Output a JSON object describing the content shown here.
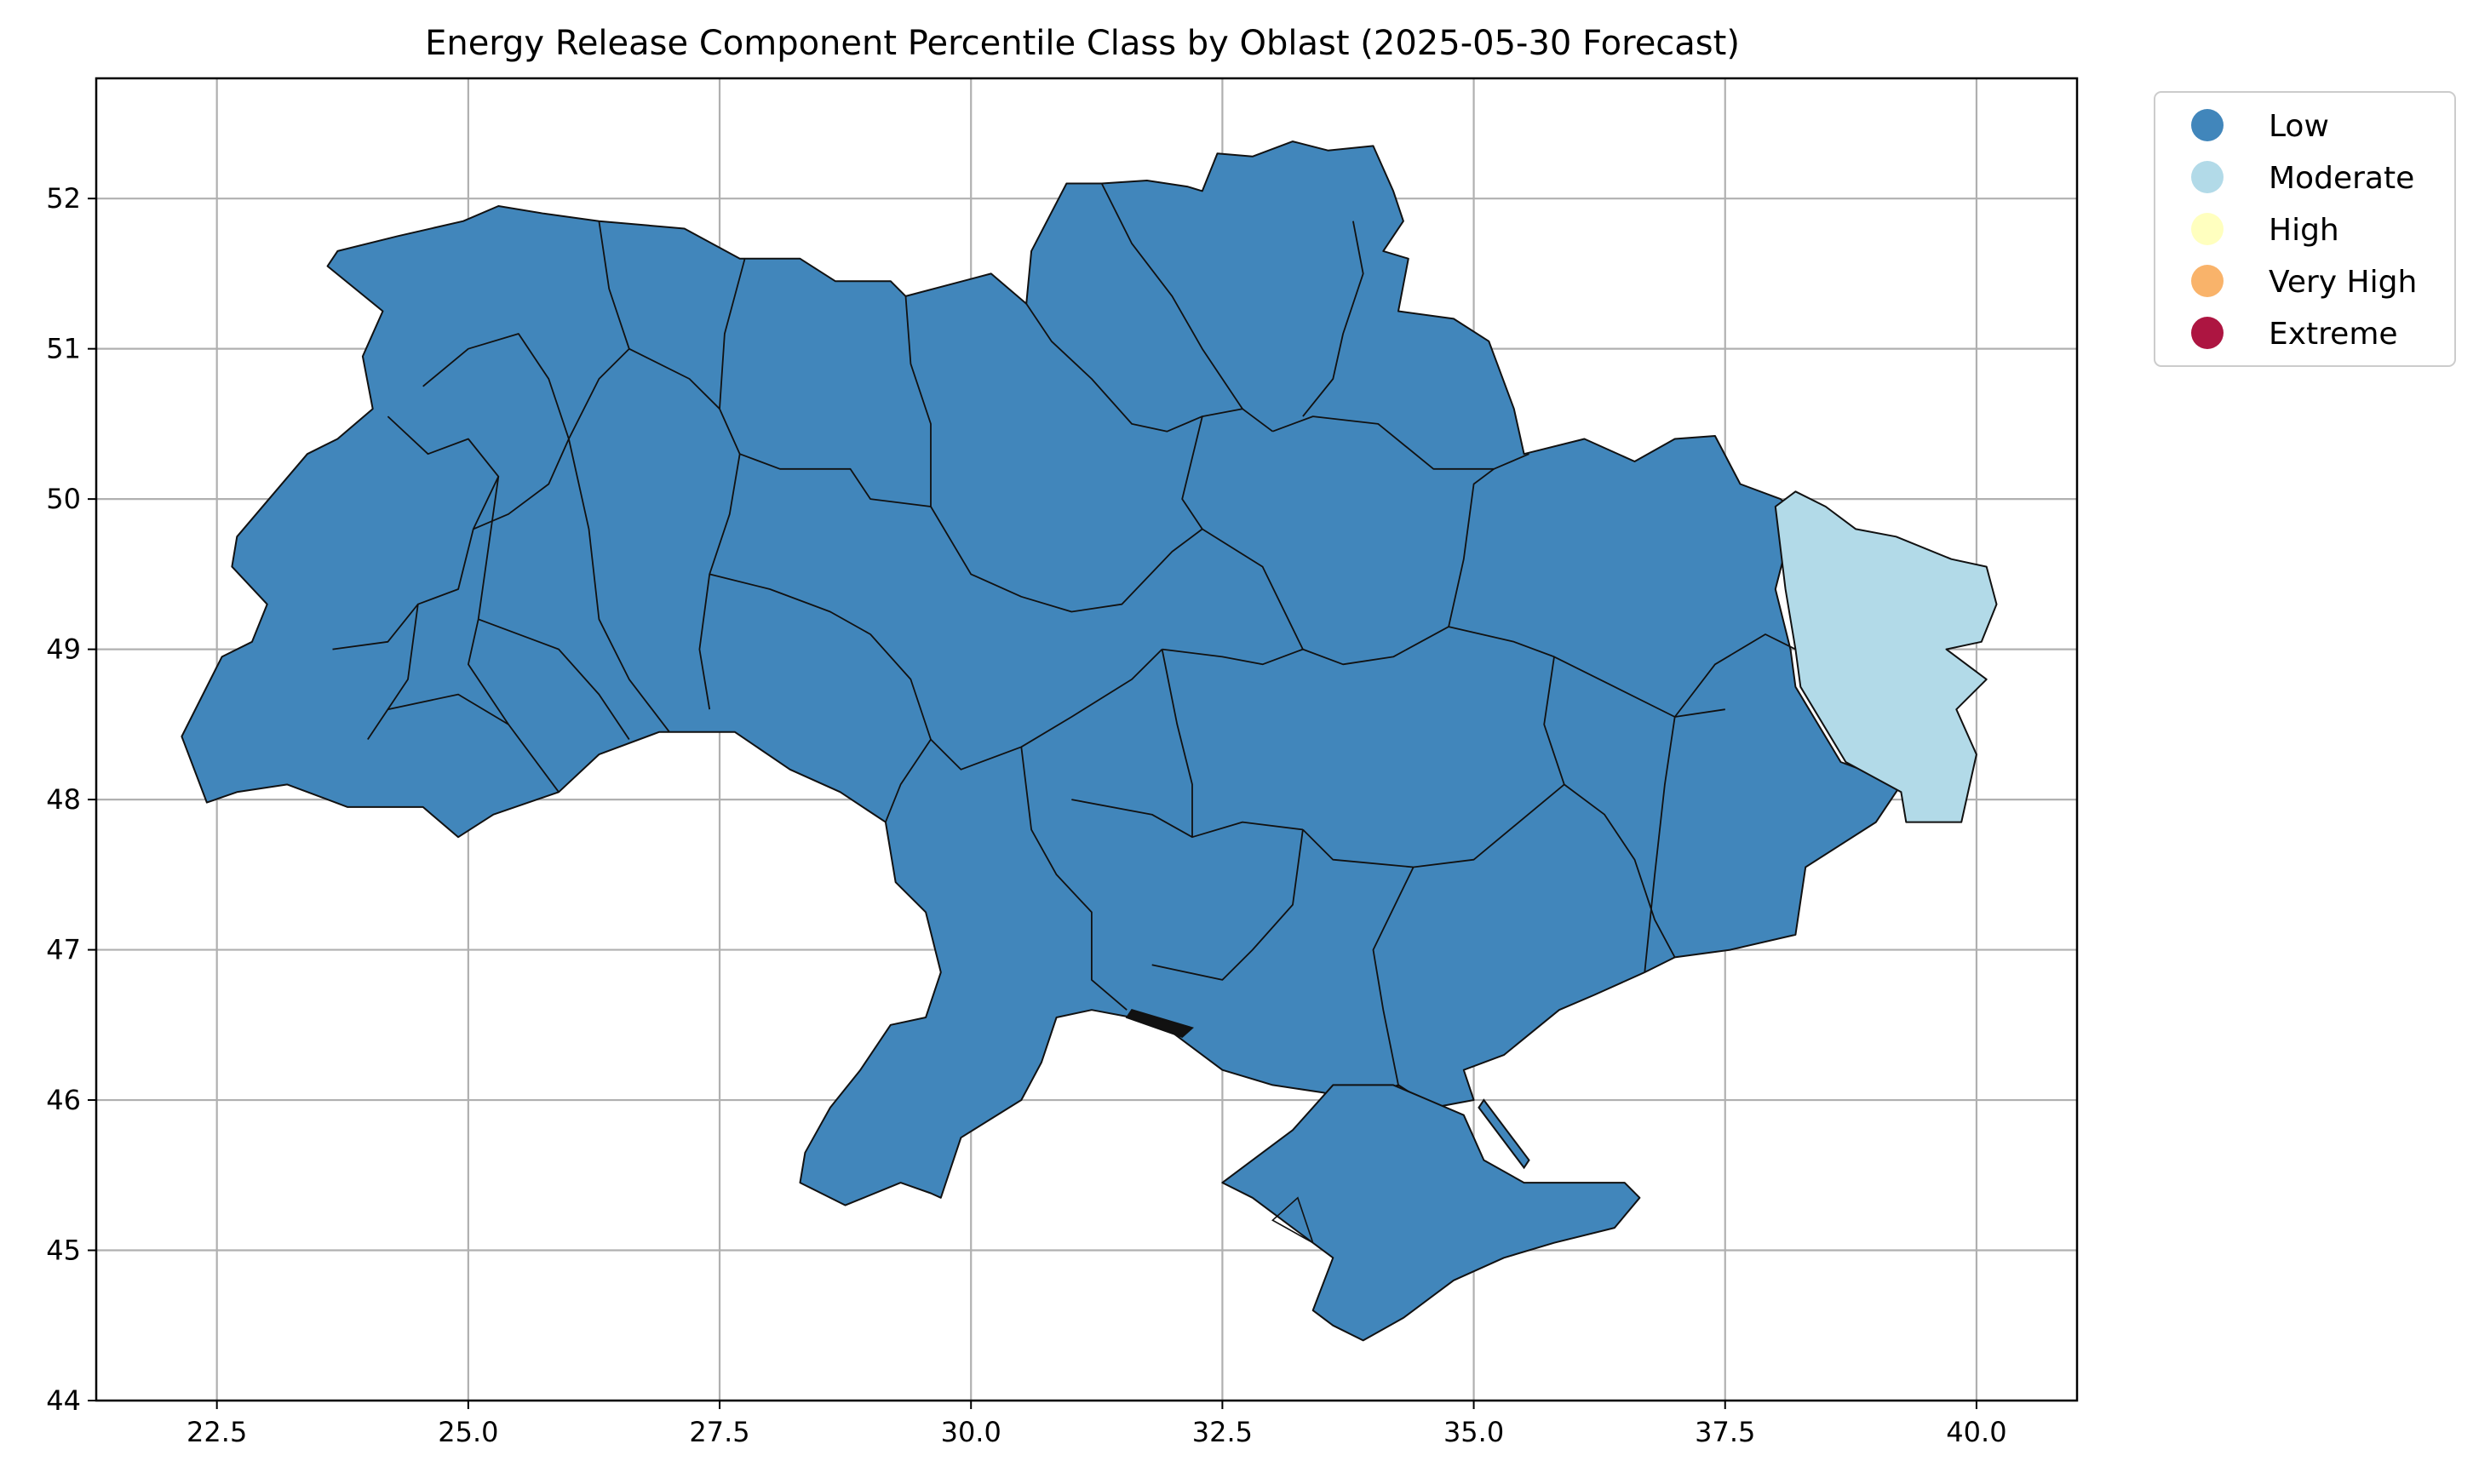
{
  "chart_data": {
    "type": "map",
    "title": "Energy Release Component Percentile Class by Oblast (2025-05-30 Forecast)",
    "xlim": [
      21.3,
      41.0
    ],
    "ylim": [
      44.0,
      52.8
    ],
    "x_ticks": [
      22.5,
      25.0,
      27.5,
      30.0,
      32.5,
      35.0,
      37.5,
      40.0
    ],
    "x_tick_labels": [
      "22.5",
      "25.0",
      "27.5",
      "30.0",
      "32.5",
      "35.0",
      "37.5",
      "40.0"
    ],
    "y_ticks": [
      44,
      45,
      46,
      47,
      48,
      49,
      50,
      51,
      52
    ],
    "y_tick_labels": [
      "44",
      "45",
      "46",
      "47",
      "48",
      "49",
      "50",
      "51",
      "52"
    ],
    "grid": true,
    "legend_position": "outside-top-right",
    "legend": [
      {
        "label": "Low",
        "color": "#4186bb"
      },
      {
        "label": "Moderate",
        "color": "#b2dae8"
      },
      {
        "label": "High",
        "color": "#ffffbf"
      },
      {
        "label": "Very High",
        "color": "#f9b36a"
      },
      {
        "label": "Extreme",
        "color": "#ad1541"
      }
    ],
    "regions": [
      {
        "class": "Low"
      },
      {
        "class": "Moderate"
      }
    ]
  }
}
